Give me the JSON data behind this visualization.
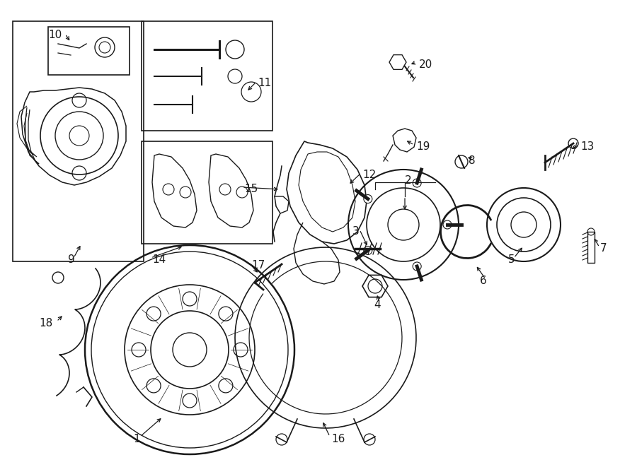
{
  "bg_color": "#ffffff",
  "line_color": "#1a1a1a",
  "fig_width": 9.0,
  "fig_height": 6.61,
  "font_size": 11
}
